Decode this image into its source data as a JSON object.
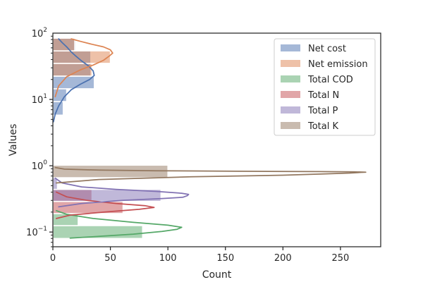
{
  "chart_data": {
    "type": "histogram-kde",
    "orientation": "horizontal",
    "xlabel": "Count",
    "ylabel": "Values",
    "xlim": [
      0,
      285
    ],
    "ylim": [
      0.06,
      100
    ],
    "yscale": "log",
    "xticks": [
      0,
      50,
      100,
      150,
      200,
      250
    ],
    "yticks": [
      {
        "value": 0.1,
        "base": "10",
        "exp": "−1"
      },
      {
        "value": 1,
        "base": "10",
        "exp": "0"
      },
      {
        "value": 10,
        "base": "10",
        "exp": "1"
      },
      {
        "value": 100,
        "base": "10",
        "exp": "2"
      }
    ],
    "legend_position": "top-right",
    "series": [
      {
        "name": "Net cost",
        "color": "#4c72b0",
        "bins": [
          {
            "low": 5.8,
            "high": 9.3,
            "count": 9
          },
          {
            "low": 9.3,
            "high": 14.5,
            "count": 12
          },
          {
            "low": 14.5,
            "high": 22.5,
            "count": 36
          },
          {
            "low": 22.5,
            "high": 35,
            "count": 33
          },
          {
            "low": 35,
            "high": 54,
            "count": 33
          },
          {
            "low": 54,
            "high": 84,
            "count": 20
          }
        ],
        "kde": [
          [
            0.5,
            4.6
          ],
          [
            2,
            6
          ],
          [
            5,
            8
          ],
          [
            10,
            11
          ],
          [
            16,
            14
          ],
          [
            24,
            17
          ],
          [
            32,
            20
          ],
          [
            36,
            23
          ],
          [
            35,
            27
          ],
          [
            31,
            32
          ],
          [
            25,
            38
          ],
          [
            20,
            45
          ],
          [
            16,
            52
          ],
          [
            12,
            62
          ],
          [
            8,
            72
          ],
          [
            5,
            82
          ]
        ]
      },
      {
        "name": "Net emission",
        "color": "#dd8452",
        "bins": [
          {
            "low": 22.5,
            "high": 35,
            "count": 34
          },
          {
            "low": 35,
            "high": 54,
            "count": 50
          },
          {
            "low": 54,
            "high": 84,
            "count": 19
          }
        ],
        "kde": [
          [
            2,
            11
          ],
          [
            5,
            16
          ],
          [
            12,
            22
          ],
          [
            24,
            28
          ],
          [
            35,
            33
          ],
          [
            44,
            39
          ],
          [
            49,
            45
          ],
          [
            52,
            50
          ],
          [
            50,
            56
          ],
          [
            44,
            62
          ],
          [
            34,
            68
          ],
          [
            24,
            75
          ],
          [
            16,
            82
          ]
        ]
      },
      {
        "name": "Total COD",
        "color": "#55a868",
        "bins": [
          {
            "low": 0.08,
            "high": 0.125,
            "count": 78
          },
          {
            "low": 0.125,
            "high": 0.19,
            "count": 22
          }
        ],
        "kde": [
          [
            15,
            0.081
          ],
          [
            40,
            0.086
          ],
          [
            70,
            0.093
          ],
          [
            95,
            0.102
          ],
          [
            108,
            0.11
          ],
          [
            112,
            0.118
          ],
          [
            100,
            0.127
          ],
          [
            70,
            0.14
          ],
          [
            35,
            0.16
          ],
          [
            12,
            0.185
          ],
          [
            3,
            0.21
          ]
        ]
      },
      {
        "name": "Total N",
        "color": "#c44e52",
        "bins": [
          {
            "low": 0.19,
            "high": 0.29,
            "count": 61
          },
          {
            "low": 0.29,
            "high": 0.44,
            "count": 34
          }
        ],
        "kde": [
          [
            3,
            0.16
          ],
          [
            15,
            0.18
          ],
          [
            45,
            0.2
          ],
          [
            75,
            0.22
          ],
          [
            88,
            0.235
          ],
          [
            80,
            0.25
          ],
          [
            55,
            0.27
          ],
          [
            30,
            0.3
          ],
          [
            12,
            0.34
          ],
          [
            3,
            0.4
          ]
        ]
      },
      {
        "name": "Total P",
        "color": "#8172b3",
        "bins": [
          {
            "low": 0.29,
            "high": 0.44,
            "count": 94
          },
          {
            "low": 0.44,
            "high": 0.68,
            "count": 4
          }
        ],
        "kde": [
          [
            5,
            0.24
          ],
          [
            25,
            0.27
          ],
          [
            60,
            0.3
          ],
          [
            95,
            0.32
          ],
          [
            113,
            0.335
          ],
          [
            117,
            0.355
          ],
          [
            118,
            0.37
          ],
          [
            112,
            0.385
          ],
          [
            90,
            0.41
          ],
          [
            55,
            0.44
          ],
          [
            25,
            0.48
          ],
          [
            8,
            0.55
          ],
          [
            2,
            0.65
          ]
        ]
      },
      {
        "name": "Total K",
        "color": "#937860",
        "bins": [
          {
            "low": 0.66,
            "high": 1.02,
            "count": 100
          }
        ],
        "kde": [
          [
            3,
            0.55
          ],
          [
            40,
            0.62
          ],
          [
            120,
            0.68
          ],
          [
            200,
            0.72
          ],
          [
            235,
            0.75
          ],
          [
            258,
            0.775
          ],
          [
            268,
            0.795
          ],
          [
            272,
            0.8
          ],
          [
            262,
            0.808
          ],
          [
            230,
            0.815
          ],
          [
            160,
            0.825
          ],
          [
            90,
            0.84
          ],
          [
            40,
            0.86
          ],
          [
            10,
            0.89
          ],
          [
            2,
            0.94
          ]
        ]
      }
    ]
  }
}
